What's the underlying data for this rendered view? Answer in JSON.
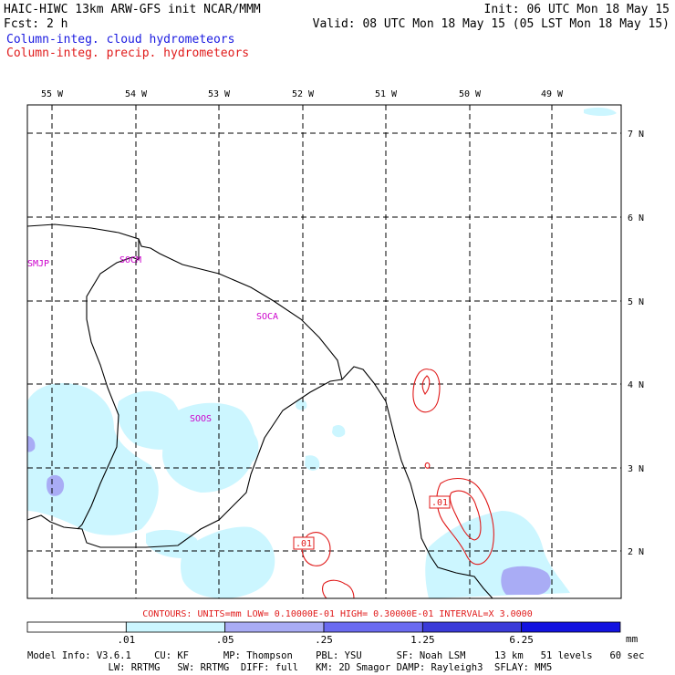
{
  "header": {
    "left_line1": "HAIC-HIWC 13km ARW-GFS init   NCAR/MMM",
    "left_line2": "Fcst:    2 h",
    "right_line1": "Init: 06 UTC Mon 18 May 15",
    "right_line2": "Valid: 08 UTC Mon 18 May 15 (05 LST Mon 18 May 15)",
    "field1": "Column-integ. cloud hydrometeors",
    "field2": "Column-integ. precip. hydrometeors",
    "field1_color": "#1a1ae0",
    "field2_color": "#e01a1a"
  },
  "map": {
    "lon_labels": [
      "55 W",
      "54 W",
      "53 W",
      "52 W",
      "51 W",
      "50 W",
      "49 W"
    ],
    "lat_labels": [
      "7 N",
      "6 N",
      "5 N",
      "4 N",
      "3 N",
      "2 N"
    ],
    "stations": [
      {
        "id": "SMJP"
      },
      {
        "id": "SOCM"
      },
      {
        "id": "SOCA"
      },
      {
        "id": "SOOS"
      }
    ],
    "contour_labels": [
      ".01",
      ".01"
    ],
    "land_color": "#ffffff",
    "cloud_fill_light": "#ccf6ff",
    "cloud_fill_mid": "#a9acf5",
    "precip_contour_color": "#e01a1a"
  },
  "contours_note": "CONTOURS:  UNITS=mm  LOW= 0.10000E-01  HIGH= 0.30000E-01  INTERVAL=X  3.0000",
  "colorbar": {
    "ticks": [
      ".01",
      ".05",
      ".25",
      "1.25",
      "6.25"
    ],
    "unit": "mm",
    "colors": [
      "#ffffff",
      "#ccf6ff",
      "#a9acf5",
      "#6a6af0",
      "#3a3ad8",
      "#1212e0"
    ]
  },
  "footer": {
    "line1": "Model Info: V3.6.1    CU: KF      MP: Thompson    PBL: YSU      SF: Noah LSM     13 km   51 levels   60 sec",
    "line2": "              LW: RRTMG   SW: RRTMG  DIFF: full   KM: 2D Smagor DAMP: Rayleigh3  SFLAY: MM5"
  }
}
